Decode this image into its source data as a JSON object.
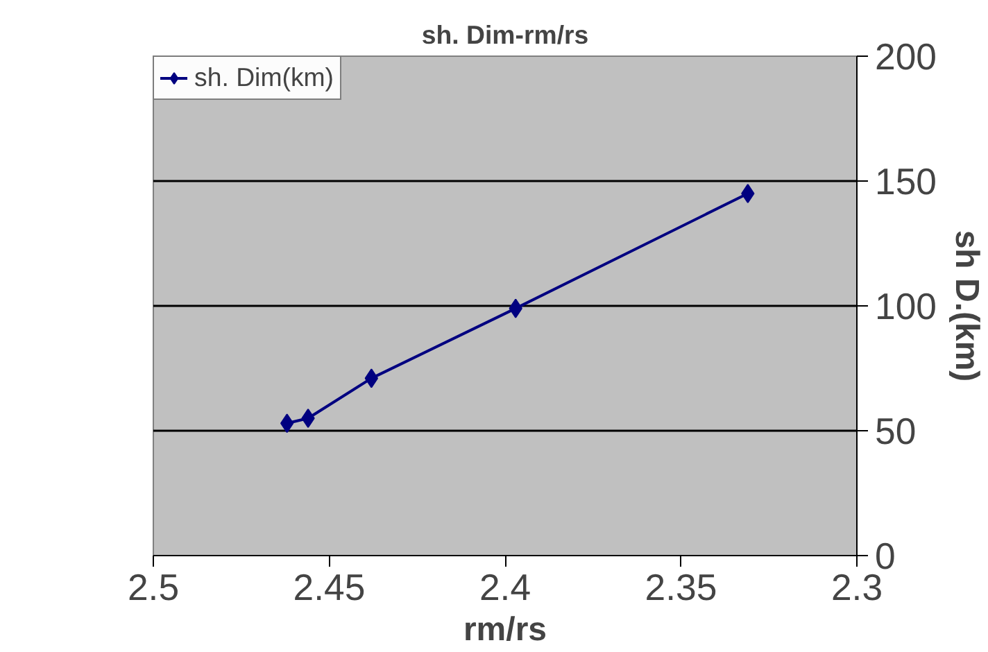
{
  "chart_data": {
    "type": "line",
    "title": "sh. Dim-rm/rs",
    "xlabel": "rm/rs",
    "ylabel": "sh D.(km)",
    "x": [
      2.462,
      2.456,
      2.438,
      2.397,
      2.331
    ],
    "series": [
      {
        "name": "sh. Dim(km)",
        "color": "#000080",
        "values": [
          53,
          55,
          71,
          99,
          145
        ]
      }
    ],
    "xlim": [
      2.5,
      2.3
    ],
    "xticks": [
      2.5,
      2.45,
      2.4,
      2.35,
      2.3
    ],
    "ylim": [
      0,
      200
    ],
    "yticks": [
      0,
      50,
      100,
      150,
      200
    ],
    "grid": "y",
    "legend": "top left",
    "marker": "diamond",
    "line_style": "solid"
  }
}
